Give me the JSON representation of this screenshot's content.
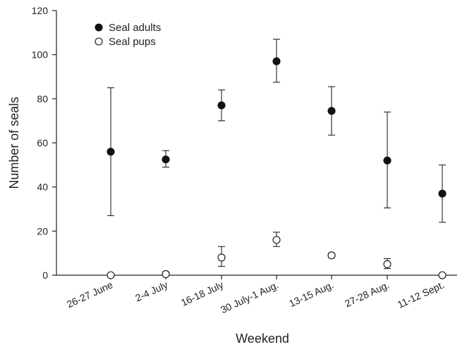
{
  "chart_data": {
    "type": "scatter",
    "xlabel": "Weekend",
    "ylabel": "Number of seals",
    "ylim": [
      0,
      120
    ],
    "yticks": [
      0,
      20,
      40,
      60,
      80,
      100,
      120
    ],
    "categories": [
      "26-27 June",
      "2-4 July",
      "16-18 July",
      "30 July-1 Aug.",
      "13-15 Aug.",
      "27-28 Aug.",
      "11-12 Sept."
    ],
    "legend_position": "top-left",
    "series": [
      {
        "name": "Seal adults",
        "marker": "filled-circle",
        "color": "#111111",
        "values": [
          56,
          52.5,
          77,
          97,
          74.5,
          52,
          37
        ],
        "err_low": [
          27,
          49,
          70,
          87.5,
          63.5,
          30.5,
          24
        ],
        "err_high": [
          85,
          56.5,
          84,
          107,
          85.5,
          74,
          50
        ]
      },
      {
        "name": "Seal pups",
        "marker": "open-circle",
        "color": "#111111",
        "values": [
          0,
          0.5,
          8,
          16,
          9,
          5,
          0
        ],
        "err_low": [
          0,
          0,
          4,
          13,
          8,
          3,
          0
        ],
        "err_high": [
          0,
          1.5,
          13,
          19.5,
          10,
          7.5,
          0
        ]
      }
    ]
  }
}
